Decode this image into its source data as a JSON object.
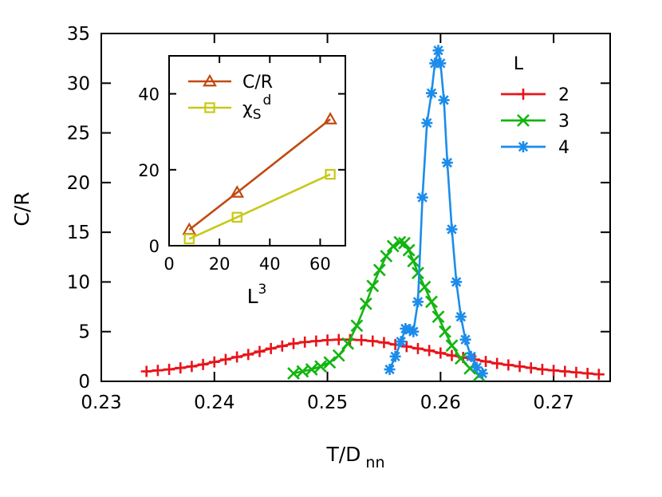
{
  "chart_data": [
    {
      "type": "line",
      "xlabel": "T/D",
      "xlabel_subscript": "nn",
      "ylabel": "C/R",
      "xlim": [
        0.23,
        0.275
      ],
      "ylim": [
        0,
        35
      ],
      "xticks": [
        "0.23",
        "0.24",
        "0.25",
        "0.26",
        "0.27"
      ],
      "yticks": [
        "0",
        "5",
        "10",
        "15",
        "20",
        "25",
        "30",
        "35"
      ],
      "grid": false,
      "legend": {
        "title": "L",
        "position": "top-right"
      },
      "series": [
        {
          "name": "2",
          "color": "#e8141b",
          "marker": "plus",
          "x": [
            0.234,
            0.235,
            0.236,
            0.237,
            0.238,
            0.239,
            0.24,
            0.241,
            0.242,
            0.243,
            0.244,
            0.245,
            0.246,
            0.247,
            0.248,
            0.249,
            0.25,
            0.251,
            0.252,
            0.253,
            0.254,
            0.255,
            0.256,
            0.257,
            0.258,
            0.259,
            0.26,
            0.261,
            0.262,
            0.263,
            0.264,
            0.265,
            0.266,
            0.267,
            0.268,
            0.269,
            0.27,
            0.271,
            0.272,
            0.273,
            0.274
          ],
          "y": [
            1.0,
            1.1,
            1.2,
            1.35,
            1.5,
            1.7,
            1.95,
            2.2,
            2.45,
            2.7,
            3.0,
            3.3,
            3.55,
            3.8,
            3.95,
            4.05,
            4.15,
            4.2,
            4.2,
            4.15,
            4.05,
            3.9,
            3.7,
            3.5,
            3.3,
            3.1,
            2.85,
            2.6,
            2.4,
            2.2,
            2.0,
            1.8,
            1.65,
            1.5,
            1.35,
            1.2,
            1.1,
            1.0,
            0.9,
            0.8,
            0.7
          ]
        },
        {
          "name": "3",
          "color": "#12b510",
          "marker": "x",
          "x": [
            0.247,
            0.2478,
            0.2486,
            0.2494,
            0.2502,
            0.251,
            0.2518,
            0.2526,
            0.2534,
            0.254,
            0.2546,
            0.2552,
            0.2558,
            0.2564,
            0.2568,
            0.2572,
            0.2576,
            0.258,
            0.2586,
            0.2592,
            0.2598,
            0.2604,
            0.261,
            0.2618,
            0.2626,
            0.2634
          ],
          "y": [
            0.8,
            1.0,
            1.2,
            1.5,
            1.9,
            2.6,
            3.8,
            5.6,
            7.8,
            9.6,
            11.2,
            12.6,
            13.6,
            14.0,
            13.9,
            13.2,
            12.1,
            10.9,
            9.5,
            8.0,
            6.5,
            5.0,
            3.6,
            2.3,
            1.3,
            0.6
          ]
        },
        {
          "name": "4",
          "color": "#1c8ceb",
          "marker": "star",
          "x": [
            0.2555,
            0.256,
            0.2565,
            0.2569,
            0.2573,
            0.2576,
            0.258,
            0.2584,
            0.2588,
            0.2592,
            0.2595,
            0.2598,
            0.26,
            0.2603,
            0.2606,
            0.261,
            0.2614,
            0.2618,
            0.2622,
            0.2627,
            0.2632,
            0.2637
          ],
          "y": [
            1.2,
            2.5,
            4.0,
            5.3,
            5.2,
            5.0,
            8.0,
            18.5,
            26.0,
            29.0,
            32.0,
            33.3,
            32.0,
            28.3,
            22.0,
            15.3,
            10.0,
            6.5,
            4.2,
            2.5,
            1.4,
            0.8
          ]
        }
      ]
    },
    {
      "type": "line",
      "xlabel": "L",
      "xlabel_superscript": "3",
      "ylabel": "",
      "xlim": [
        0,
        70
      ],
      "ylim": [
        0,
        50
      ],
      "xticks": [
        "0",
        "20",
        "40",
        "60"
      ],
      "yticks": [
        "0",
        "20",
        "40"
      ],
      "grid": false,
      "legend": {
        "position": "top-left"
      },
      "series": [
        {
          "name": "C/R",
          "color": "#c04a10",
          "marker": "triangle",
          "x": [
            8,
            27,
            64
          ],
          "y": [
            4.2,
            14.0,
            33.3
          ]
        },
        {
          "name": "χ",
          "name_subscript": "S",
          "name_superscript": "d",
          "color": "#c8c818",
          "marker": "square",
          "x": [
            8,
            27,
            64
          ],
          "y": [
            1.8,
            7.5,
            18.8
          ]
        }
      ]
    }
  ]
}
